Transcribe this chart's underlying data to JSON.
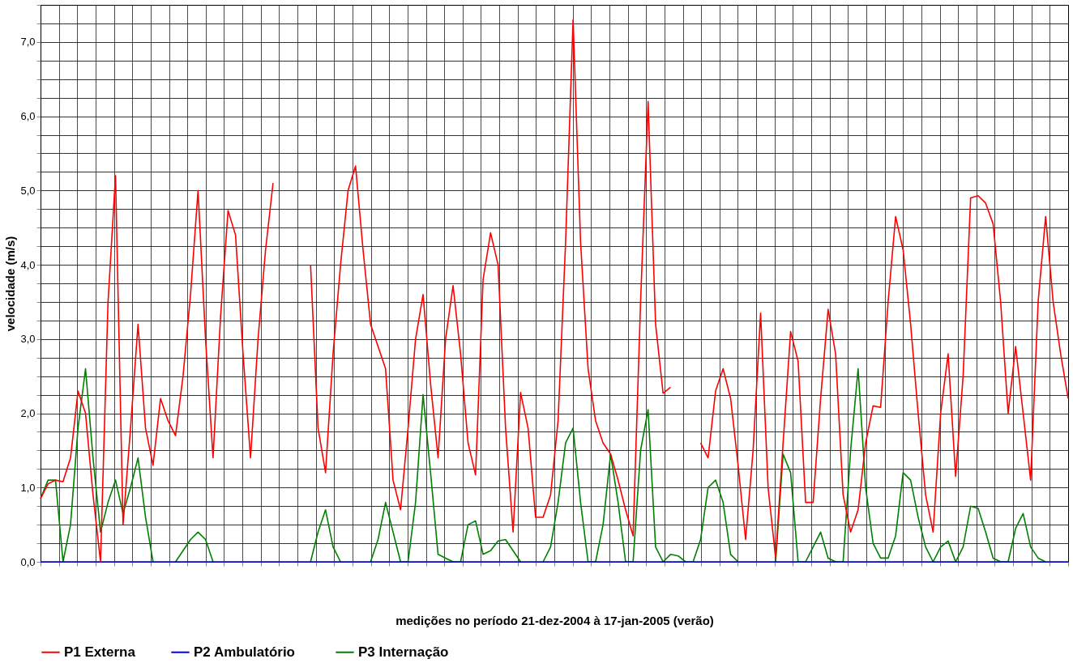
{
  "chart_data": {
    "type": "line",
    "xlabel": "medições no período 21-dez-2004 à 17-jan-2005 (verão)",
    "ylabel": "velocidade  (m/s)",
    "categories": [
      null,
      null,
      null,
      null,
      null,
      null,
      null,
      null,
      null,
      null,
      null,
      null,
      null,
      null,
      null,
      null,
      null,
      null,
      null,
      null,
      null,
      null,
      null,
      null,
      null,
      null,
      null,
      null,
      null,
      null,
      null,
      null,
      null,
      null,
      null,
      null,
      null,
      null,
      null,
      null,
      null,
      null,
      null,
      null,
      null,
      null,
      null,
      null,
      null,
      null,
      null,
      null,
      null,
      null,
      null,
      null,
      null,
      null,
      null,
      null,
      null,
      null,
      null,
      null,
      null,
      null,
      null,
      null,
      null,
      null,
      null,
      null,
      null,
      null,
      null,
      null,
      null,
      null,
      null,
      null,
      null,
      null,
      null,
      null,
      null,
      null,
      null,
      null,
      null,
      null,
      null,
      null,
      null,
      null,
      null,
      null,
      null,
      null,
      null,
      null,
      null,
      null,
      null,
      null,
      null,
      null,
      null,
      null,
      null,
      null,
      null,
      null,
      null,
      null,
      null,
      null,
      null,
      null,
      null,
      null,
      null,
      null,
      null,
      null,
      null,
      null,
      null,
      null,
      null,
      null,
      null,
      null,
      null,
      null,
      null,
      null,
      null,
      null
    ],
    "series": [
      {
        "name": "P1 Externa",
        "color": "#ff0000",
        "values": [
          0.85,
          1.05,
          1.1,
          1.08,
          1.4,
          2.3,
          2.0,
          0.9,
          0.0,
          3.5,
          5.2,
          0.5,
          1.8,
          3.2,
          1.8,
          1.3,
          2.2,
          1.9,
          1.7,
          2.5,
          3.6,
          5.0,
          3.0,
          1.4,
          3.3,
          4.73,
          4.4,
          2.8,
          1.4,
          3.0,
          4.2,
          5.1,
          null,
          null,
          null,
          null,
          4.0,
          1.8,
          1.2,
          2.8,
          4.0,
          5.0,
          5.33,
          4.2,
          3.2,
          2.9,
          2.6,
          1.1,
          0.7,
          1.8,
          3.0,
          3.6,
          2.4,
          1.4,
          3.0,
          3.72,
          2.8,
          1.6,
          1.17,
          3.8,
          4.43,
          4.0,
          1.8,
          0.4,
          2.28,
          1.8,
          0.6,
          0.6,
          0.9,
          1.9,
          4.3,
          7.3,
          4.3,
          2.6,
          1.9,
          1.6,
          1.45,
          1.1,
          0.7,
          0.35,
          3.5,
          6.2,
          3.2,
          2.27,
          2.35,
          null,
          null,
          null,
          1.6,
          1.4,
          2.3,
          2.6,
          2.2,
          1.3,
          0.3,
          1.5,
          3.35,
          1.0,
          0.05,
          1.6,
          3.1,
          2.7,
          0.8,
          0.8,
          2.2,
          3.4,
          2.8,
          0.9,
          0.4,
          0.7,
          1.6,
          2.1,
          2.08,
          3.5,
          4.65,
          4.2,
          3.2,
          2.0,
          0.9,
          0.4,
          2.0,
          2.8,
          1.15,
          2.5,
          4.9,
          4.93,
          4.83,
          4.55,
          3.5,
          2.0,
          2.9,
          2.0,
          1.1,
          3.5,
          4.65,
          3.5,
          2.8,
          2.2
        ]
      },
      {
        "name": "P2  Ambulatório",
        "color": "#0000ff",
        "values": [
          0,
          0,
          0,
          0,
          0,
          0,
          0,
          0,
          0,
          0,
          0,
          0,
          0,
          0,
          0,
          0,
          0,
          0,
          0,
          0,
          0,
          0,
          0,
          0,
          0,
          0,
          0,
          0,
          0,
          0,
          0,
          0,
          0,
          0,
          0,
          0,
          0,
          0,
          0,
          0,
          0,
          0,
          0,
          0,
          0,
          0,
          0,
          0,
          0,
          0,
          0,
          0,
          0,
          0,
          0,
          0,
          0,
          0,
          0,
          0,
          0,
          0,
          0,
          0,
          0,
          0,
          0,
          0,
          0,
          0,
          0,
          0,
          0,
          0,
          0,
          0,
          0,
          0,
          0,
          0,
          0,
          0,
          0,
          0,
          0,
          0,
          0,
          0,
          0,
          0,
          0,
          0,
          0,
          0,
          0,
          0,
          0,
          0,
          0,
          0,
          0,
          0,
          0,
          0,
          0,
          0,
          0,
          0,
          0,
          0,
          0,
          0,
          0,
          0,
          0,
          0,
          0,
          0,
          0,
          0,
          0,
          0,
          0,
          0,
          0,
          0,
          0,
          0,
          0,
          0,
          0,
          0,
          0,
          0,
          0,
          0,
          0,
          0
        ]
      },
      {
        "name": "P3  Internação",
        "color": "#008000",
        "values": [
          0.85,
          1.1,
          1.1,
          0.0,
          0.5,
          1.8,
          2.6,
          1.4,
          0.4,
          0.8,
          1.1,
          0.65,
          1.0,
          1.4,
          0.6,
          0,
          null,
          null,
          0,
          0.15,
          0.3,
          0.4,
          0.3,
          0,
          null,
          null,
          null,
          null,
          null,
          null,
          null,
          null,
          null,
          null,
          null,
          null,
          0,
          0.4,
          0.7,
          0.2,
          0,
          null,
          null,
          null,
          0,
          0.3,
          0.8,
          0.4,
          0,
          0,
          0.8,
          2.25,
          1.2,
          0.1,
          0.05,
          0,
          0,
          0.5,
          0.55,
          0.1,
          0.15,
          0.28,
          0.3,
          0.15,
          0,
          null,
          null,
          0,
          0.2,
          0.8,
          1.6,
          1.8,
          0.8,
          0,
          0,
          0.5,
          1.45,
          0.8,
          0,
          0,
          1.5,
          2.05,
          0.2,
          0,
          0.1,
          0.08,
          0,
          0,
          0.3,
          1.0,
          1.1,
          0.8,
          0.1,
          0,
          null,
          null,
          null,
          null,
          0,
          1.45,
          1.2,
          0,
          0,
          0.2,
          0.4,
          0.05,
          0,
          0,
          1.5,
          2.6,
          1.0,
          0.25,
          0.05,
          0.05,
          0.35,
          1.2,
          1.1,
          0.6,
          0.2,
          0,
          0.2,
          0.28,
          0,
          0.2,
          0.75,
          0.72,
          0.4,
          0.05,
          0,
          0,
          0.45,
          0.65,
          0.2,
          0.05,
          0,
          null,
          null,
          null
        ]
      }
    ],
    "ylim": [
      0,
      7.5
    ],
    "yticks": [
      {
        "value": 0,
        "label": "0,0"
      },
      {
        "value": 0.25,
        "label": null
      },
      {
        "value": 0.5,
        "label": null
      },
      {
        "value": 0.75,
        "label": null
      },
      {
        "value": 1,
        "label": "1,0"
      },
      {
        "value": 1.25,
        "label": null
      },
      {
        "value": 1.5,
        "label": null
      },
      {
        "value": 1.75,
        "label": null
      },
      {
        "value": 2,
        "label": "2,0"
      },
      {
        "value": 2.25,
        "label": null
      },
      {
        "value": 2.5,
        "label": null
      },
      {
        "value": 2.75,
        "label": null
      },
      {
        "value": 3,
        "label": "3,0"
      },
      {
        "value": 3.25,
        "label": null
      },
      {
        "value": 3.5,
        "label": null
      },
      {
        "value": 3.75,
        "label": null
      },
      {
        "value": 4,
        "label": "4,0"
      },
      {
        "value": 4.25,
        "label": null
      },
      {
        "value": 4.5,
        "label": null
      },
      {
        "value": 4.75,
        "label": null
      },
      {
        "value": 5,
        "label": "5,0"
      },
      {
        "value": 5.25,
        "label": null
      },
      {
        "value": 5.5,
        "label": null
      },
      {
        "value": 5.75,
        "label": null
      },
      {
        "value": 6,
        "label": "6,0"
      },
      {
        "value": 6.25,
        "label": null
      },
      {
        "value": 6.5,
        "label": null
      },
      {
        "value": 6.75,
        "label": null
      },
      {
        "value": 7,
        "label": "7,0"
      },
      {
        "value": 7.25,
        "label": null
      },
      {
        "value": 7.5,
        "label": null
      }
    ],
    "grid": true,
    "legend": "bottom",
    "marker": "none",
    "line_style": "solid"
  }
}
